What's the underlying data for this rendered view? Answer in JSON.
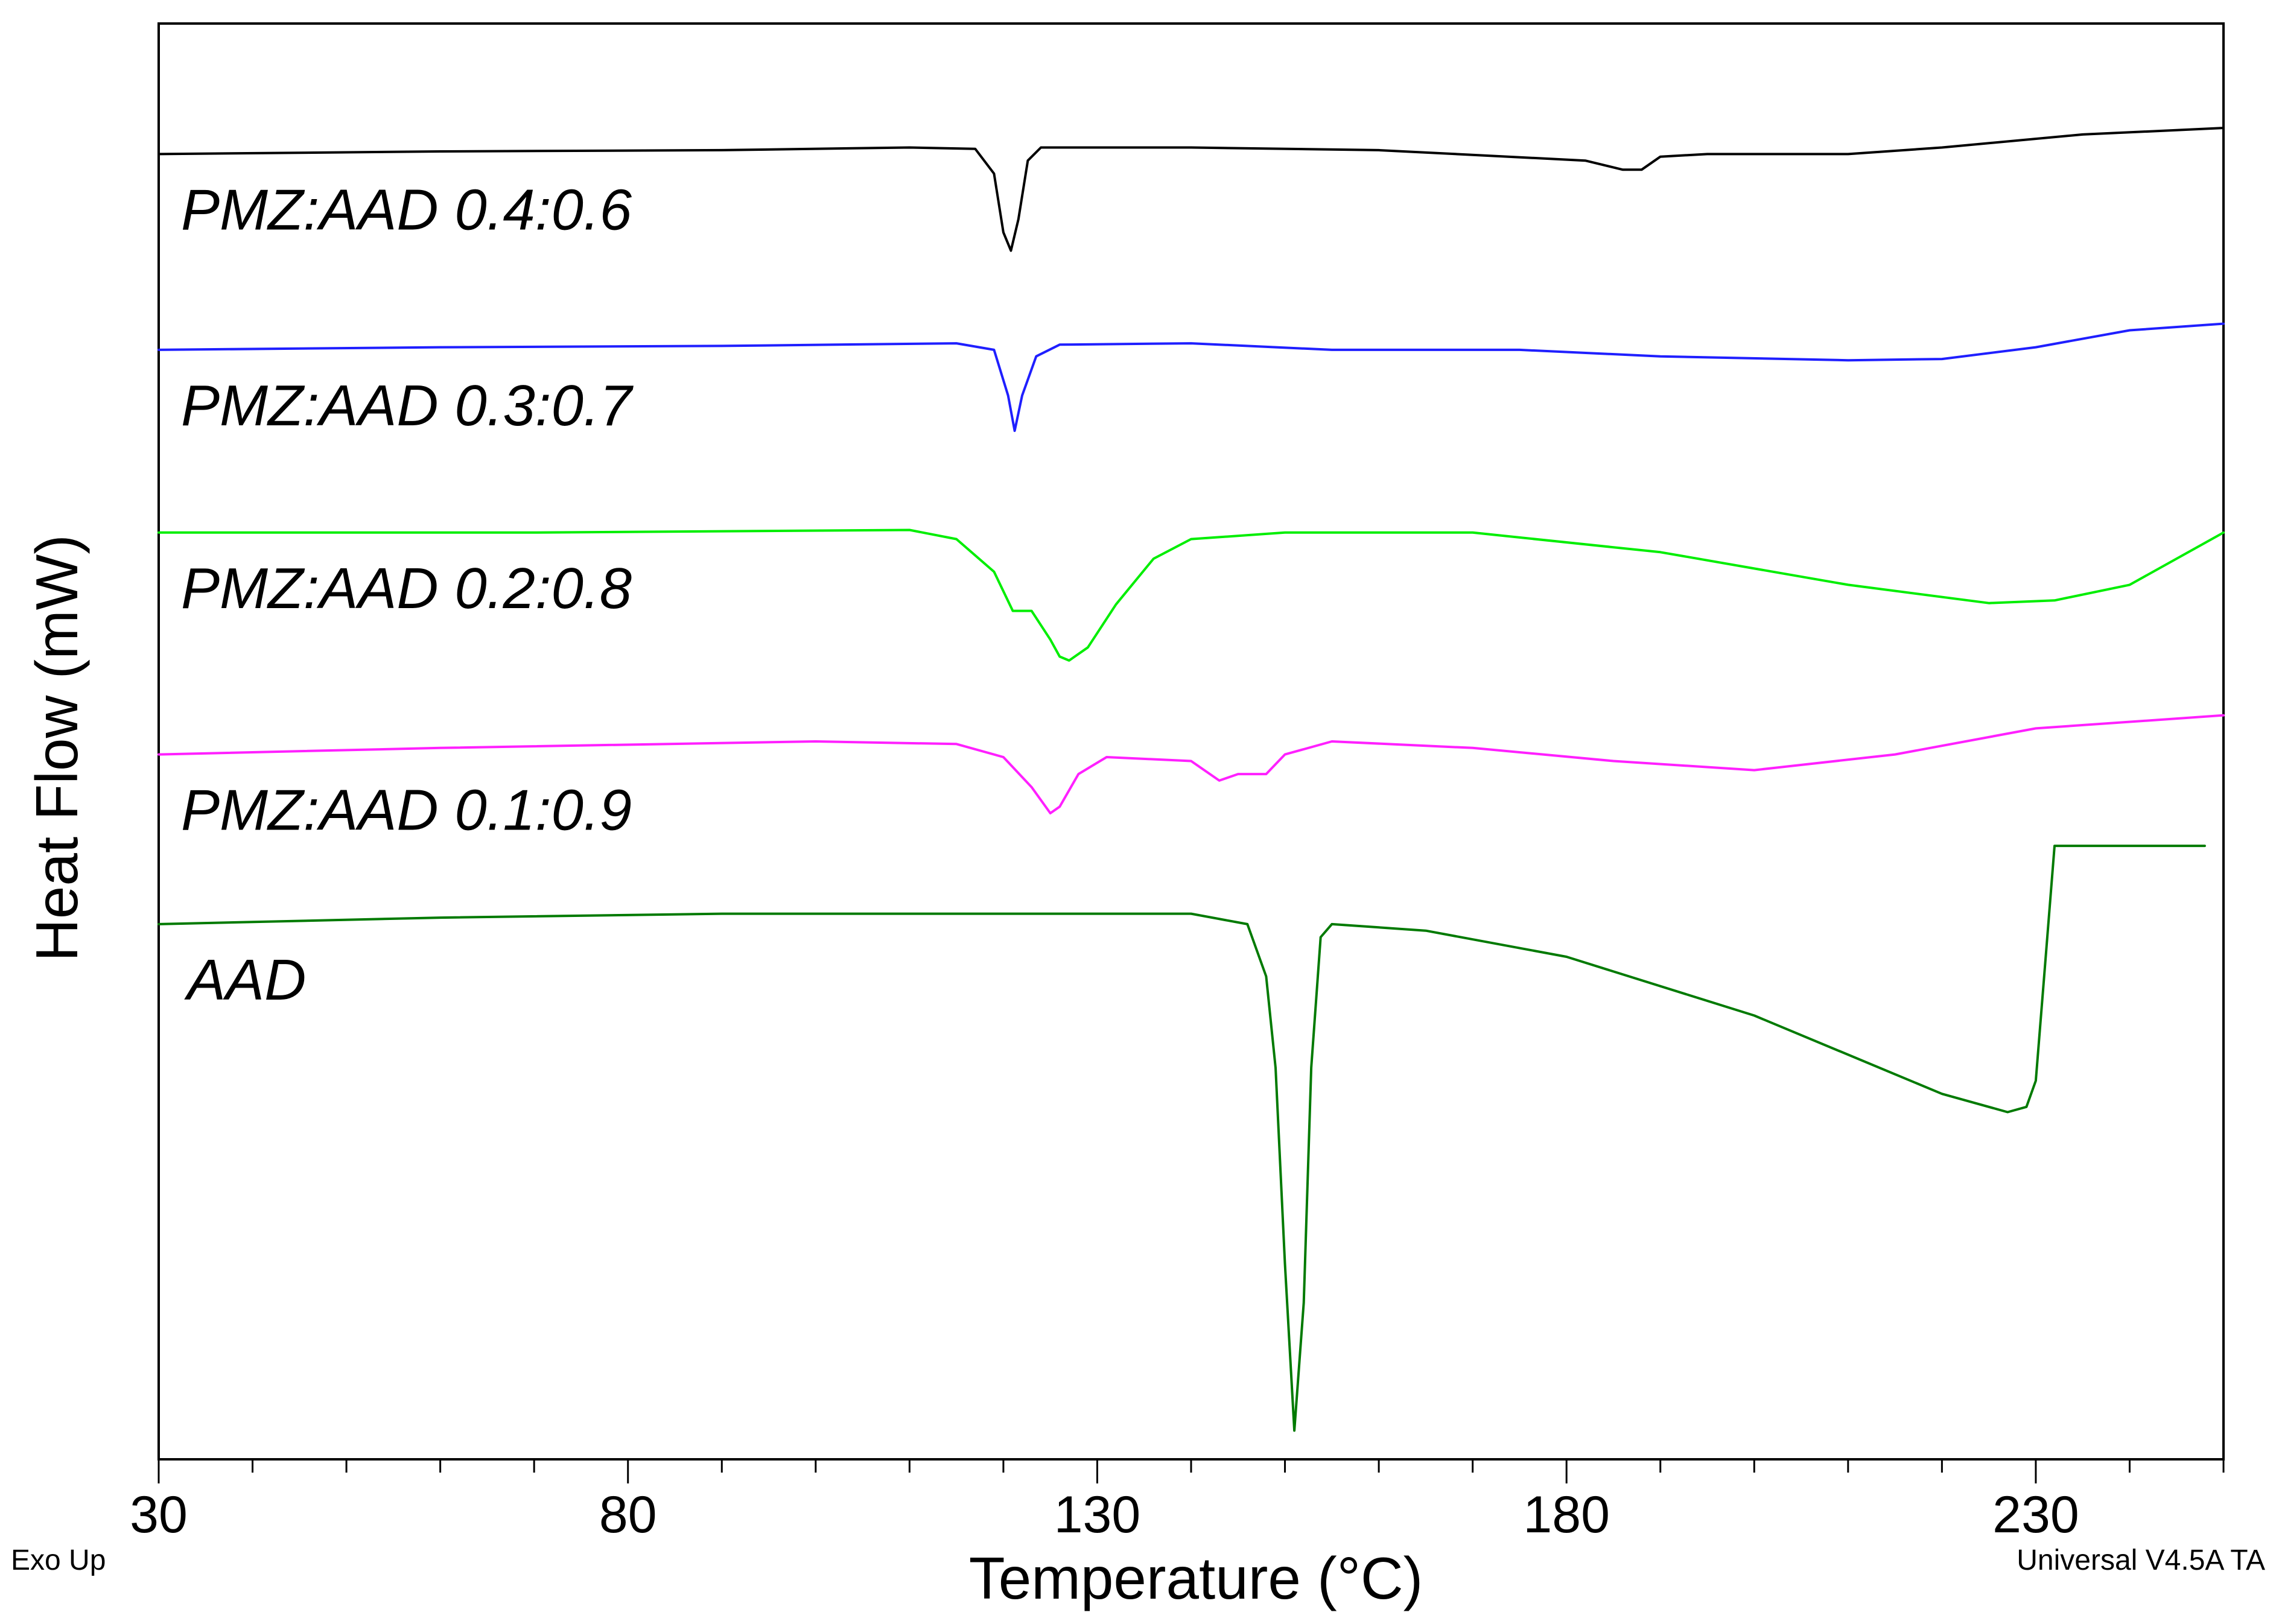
{
  "chart_data": {
    "type": "line",
    "title": "",
    "xlabel": "Temperature (°C)",
    "ylabel": "Heat Flow (mW)",
    "xlim": [
      30,
      250
    ],
    "ylim": [
      -10,
      1
    ],
    "x_ticks": [
      30,
      80,
      130,
      180,
      230
    ],
    "grid": false,
    "legend": "none",
    "corner_notes": {
      "left": "Exo Up",
      "right": "Universal V4.5A TA"
    },
    "series": [
      {
        "name": "PMZ:AAD 0.4:0.6",
        "color": "#000000",
        "points": [
          [
            30,
            0.0
          ],
          [
            60,
            0.02
          ],
          [
            90,
            0.03
          ],
          [
            110,
            0.05
          ],
          [
            117,
            0.04
          ],
          [
            119,
            -0.15
          ],
          [
            120,
            -0.6
          ],
          [
            120.8,
            -0.74
          ],
          [
            121.6,
            -0.5
          ],
          [
            122.6,
            -0.05
          ],
          [
            124,
            0.05
          ],
          [
            140,
            0.05
          ],
          [
            160,
            0.03
          ],
          [
            182,
            -0.05
          ],
          [
            186,
            -0.12
          ],
          [
            188,
            -0.12
          ],
          [
            190,
            -0.02
          ],
          [
            195,
            0.0
          ],
          [
            210,
            0.0
          ],
          [
            220,
            0.05
          ],
          [
            235,
            0.15
          ],
          [
            250,
            0.2
          ]
        ]
      },
      {
        "name": "PMZ:AAD 0.3:0.7",
        "color": "#1f1fff",
        "points": [
          [
            30,
            -1.5
          ],
          [
            60,
            -1.48
          ],
          [
            90,
            -1.47
          ],
          [
            115,
            -1.45
          ],
          [
            119,
            -1.5
          ],
          [
            120.5,
            -1.85
          ],
          [
            121.2,
            -2.12
          ],
          [
            122,
            -1.85
          ],
          [
            123.5,
            -1.55
          ],
          [
            126,
            -1.46
          ],
          [
            140,
            -1.45
          ],
          [
            155,
            -1.5
          ],
          [
            175,
            -1.5
          ],
          [
            190,
            -1.55
          ],
          [
            210,
            -1.58
          ],
          [
            220,
            -1.57
          ],
          [
            230,
            -1.48
          ],
          [
            240,
            -1.35
          ],
          [
            250,
            -1.3
          ]
        ]
      },
      {
        "name": "PMZ:AAD 0.2:0.8",
        "color": "#00ee00",
        "points": [
          [
            30,
            -2.9
          ],
          [
            70,
            -2.9
          ],
          [
            110,
            -2.88
          ],
          [
            115,
            -2.95
          ],
          [
            119,
            -3.2
          ],
          [
            121,
            -3.5
          ],
          [
            123,
            -3.5
          ],
          [
            125,
            -3.72
          ],
          [
            126,
            -3.85
          ],
          [
            127,
            -3.88
          ],
          [
            129,
            -3.78
          ],
          [
            132,
            -3.45
          ],
          [
            136,
            -3.1
          ],
          [
            140,
            -2.95
          ],
          [
            150,
            -2.9
          ],
          [
            170,
            -2.9
          ],
          [
            190,
            -3.05
          ],
          [
            210,
            -3.3
          ],
          [
            225,
            -3.44
          ],
          [
            232,
            -3.42
          ],
          [
            240,
            -3.3
          ],
          [
            250,
            -2.9
          ]
        ]
      },
      {
        "name": "PMZ:AAD 0.1:0.9",
        "color": "#ff20ff",
        "points": [
          [
            30,
            -4.6
          ],
          [
            60,
            -4.55
          ],
          [
            100,
            -4.5
          ],
          [
            115,
            -4.52
          ],
          [
            120,
            -4.62
          ],
          [
            123,
            -4.85
          ],
          [
            125,
            -5.05
          ],
          [
            126,
            -5.0
          ],
          [
            128,
            -4.75
          ],
          [
            131,
            -4.62
          ],
          [
            140,
            -4.65
          ],
          [
            143,
            -4.8
          ],
          [
            145,
            -4.75
          ],
          [
            148,
            -4.75
          ],
          [
            150,
            -4.6
          ],
          [
            155,
            -4.5
          ],
          [
            170,
            -4.55
          ],
          [
            185,
            -4.65
          ],
          [
            200,
            -4.72
          ],
          [
            215,
            -4.6
          ],
          [
            230,
            -4.4
          ],
          [
            250,
            -4.3
          ]
        ]
      },
      {
        "name": "AAD",
        "color": "#007a00",
        "points": [
          [
            30,
            -5.9
          ],
          [
            60,
            -5.85
          ],
          [
            90,
            -5.82
          ],
          [
            140,
            -5.82
          ],
          [
            146,
            -5.9
          ],
          [
            148,
            -6.3
          ],
          [
            149,
            -7.0
          ],
          [
            150,
            -8.5
          ],
          [
            151,
            -9.78
          ],
          [
            152,
            -8.8
          ],
          [
            152.8,
            -7.0
          ],
          [
            153.8,
            -6.0
          ],
          [
            155,
            -5.9
          ],
          [
            165,
            -5.95
          ],
          [
            180,
            -6.15
          ],
          [
            200,
            -6.6
          ],
          [
            220,
            -7.2
          ],
          [
            227,
            -7.34
          ],
          [
            229,
            -7.3
          ],
          [
            230,
            -7.1
          ],
          [
            231,
            -6.2
          ],
          [
            232,
            -5.3
          ],
          [
            240,
            -5.3
          ],
          [
            248,
            -5.3
          ]
        ]
      }
    ]
  }
}
